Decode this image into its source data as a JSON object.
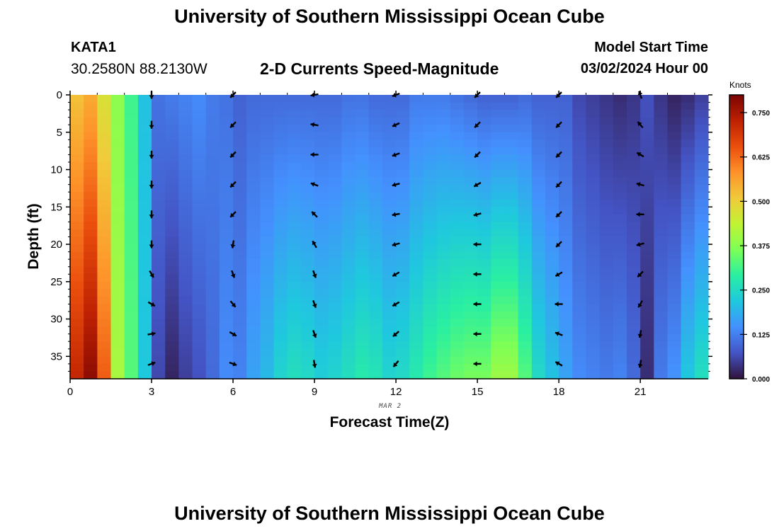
{
  "header": {
    "title": "University of Southern Mississippi Ocean Cube",
    "station": "KATA1",
    "coordinates": "30.2580N  88.2130W",
    "subtitle": "2-D Currents Speed-Magnitude",
    "model_start_label": "Model Start Time",
    "model_start_value": "03/02/2024 Hour 00"
  },
  "footer": {
    "title": "University of Southern Mississippi Ocean Cube"
  },
  "chart_data": {
    "type": "heatmap",
    "xlabel": "Forecast Time(Z)",
    "ylabel": "Depth (ft)",
    "day_label": "MAR 2",
    "xlim": [
      0,
      23.5
    ],
    "ylim": [
      38,
      0
    ],
    "xticks": [
      0,
      3,
      6,
      9,
      12,
      15,
      18,
      21
    ],
    "yticks": [
      0,
      5,
      10,
      15,
      20,
      25,
      30,
      35
    ],
    "colorbar": {
      "units": "Knots",
      "range": [
        0,
        0.8
      ],
      "ticks": [
        "0.000",
        "0.125",
        "0.250",
        "0.375",
        "0.500",
        "0.625",
        "0.750"
      ],
      "colors": [
        "#30123b",
        "#4454c4",
        "#4490fe",
        "#1fc8de",
        "#29efa2",
        "#7dff56",
        "#c1f334",
        "#f1ca3a",
        "#fe922a",
        "#ea4f0d",
        "#be2102",
        "#7a0403"
      ]
    },
    "hours": [
      0,
      0.5,
      1,
      1.5,
      2,
      2.5,
      3,
      3.5,
      4,
      4.5,
      5,
      5.5,
      6,
      6.5,
      7,
      7.5,
      8,
      8.5,
      9,
      9.5,
      10,
      10.5,
      11,
      11.5,
      12,
      12.5,
      13,
      13.5,
      14,
      14.5,
      15,
      15.5,
      16,
      16.5,
      17,
      17.5,
      18,
      18.5,
      19,
      19.5,
      20,
      20.5,
      21,
      21.5,
      22,
      22.5,
      23
    ],
    "depth_levels_ft": [
      0,
      38
    ],
    "speed_profiles_knots": [
      [
        0.52,
        0.72
      ],
      [
        0.55,
        0.78
      ],
      [
        0.47,
        0.64
      ],
      [
        0.38,
        0.41
      ],
      [
        0.31,
        0.33
      ],
      [
        0.21,
        0.22
      ],
      [
        0.11,
        0.06
      ],
      [
        0.12,
        0.02
      ],
      [
        0.13,
        0.05
      ],
      [
        0.14,
        0.07
      ],
      [
        0.12,
        0.1
      ],
      [
        0.11,
        0.14
      ],
      [
        0.09,
        0.13
      ],
      [
        0.1,
        0.17
      ],
      [
        0.1,
        0.2
      ],
      [
        0.1,
        0.24
      ],
      [
        0.1,
        0.26
      ],
      [
        0.1,
        0.25
      ],
      [
        0.1,
        0.23
      ],
      [
        0.1,
        0.24
      ],
      [
        0.11,
        0.26
      ],
      [
        0.11,
        0.28
      ],
      [
        0.1,
        0.27
      ],
      [
        0.1,
        0.24
      ],
      [
        0.1,
        0.25
      ],
      [
        0.12,
        0.28
      ],
      [
        0.12,
        0.31
      ],
      [
        0.12,
        0.33
      ],
      [
        0.11,
        0.35
      ],
      [
        0.1,
        0.36
      ],
      [
        0.09,
        0.36
      ],
      [
        0.09,
        0.4
      ],
      [
        0.09,
        0.4
      ],
      [
        0.1,
        0.33
      ],
      [
        0.09,
        0.25
      ],
      [
        0.09,
        0.21
      ],
      [
        0.09,
        0.17
      ],
      [
        0.06,
        0.14
      ],
      [
        0.05,
        0.13
      ],
      [
        0.04,
        0.12
      ],
      [
        0.03,
        0.13
      ],
      [
        0.04,
        0.1
      ],
      [
        0.07,
        0.03
      ],
      [
        0.04,
        0.12
      ],
      [
        0.02,
        0.15
      ],
      [
        0.03,
        0.22
      ],
      [
        0.05,
        0.26
      ]
    ],
    "vector_hours": [
      3,
      6,
      9,
      12,
      15,
      18,
      21
    ],
    "vector_depths_ft": [
      0,
      4,
      8,
      12,
      16,
      20,
      24,
      28,
      32,
      36
    ],
    "vector_directions_deg": [
      [
        180,
        180,
        180,
        180,
        180,
        180,
        150,
        120,
        80,
        70
      ],
      [
        225,
        225,
        225,
        225,
        225,
        190,
        160,
        140,
        120,
        110
      ],
      [
        260,
        280,
        270,
        290,
        315,
        330,
        160,
        160,
        160,
        170
      ],
      [
        250,
        245,
        250,
        255,
        260,
        255,
        240,
        240,
        230,
        220
      ],
      [
        225,
        225,
        225,
        240,
        255,
        270,
        270,
        270,
        270,
        270
      ],
      [
        225,
        225,
        225,
        225,
        225,
        225,
        240,
        270,
        290,
        300
      ],
      [
        340,
        320,
        300,
        285,
        270,
        255,
        225,
        210,
        190,
        190
      ]
    ]
  }
}
